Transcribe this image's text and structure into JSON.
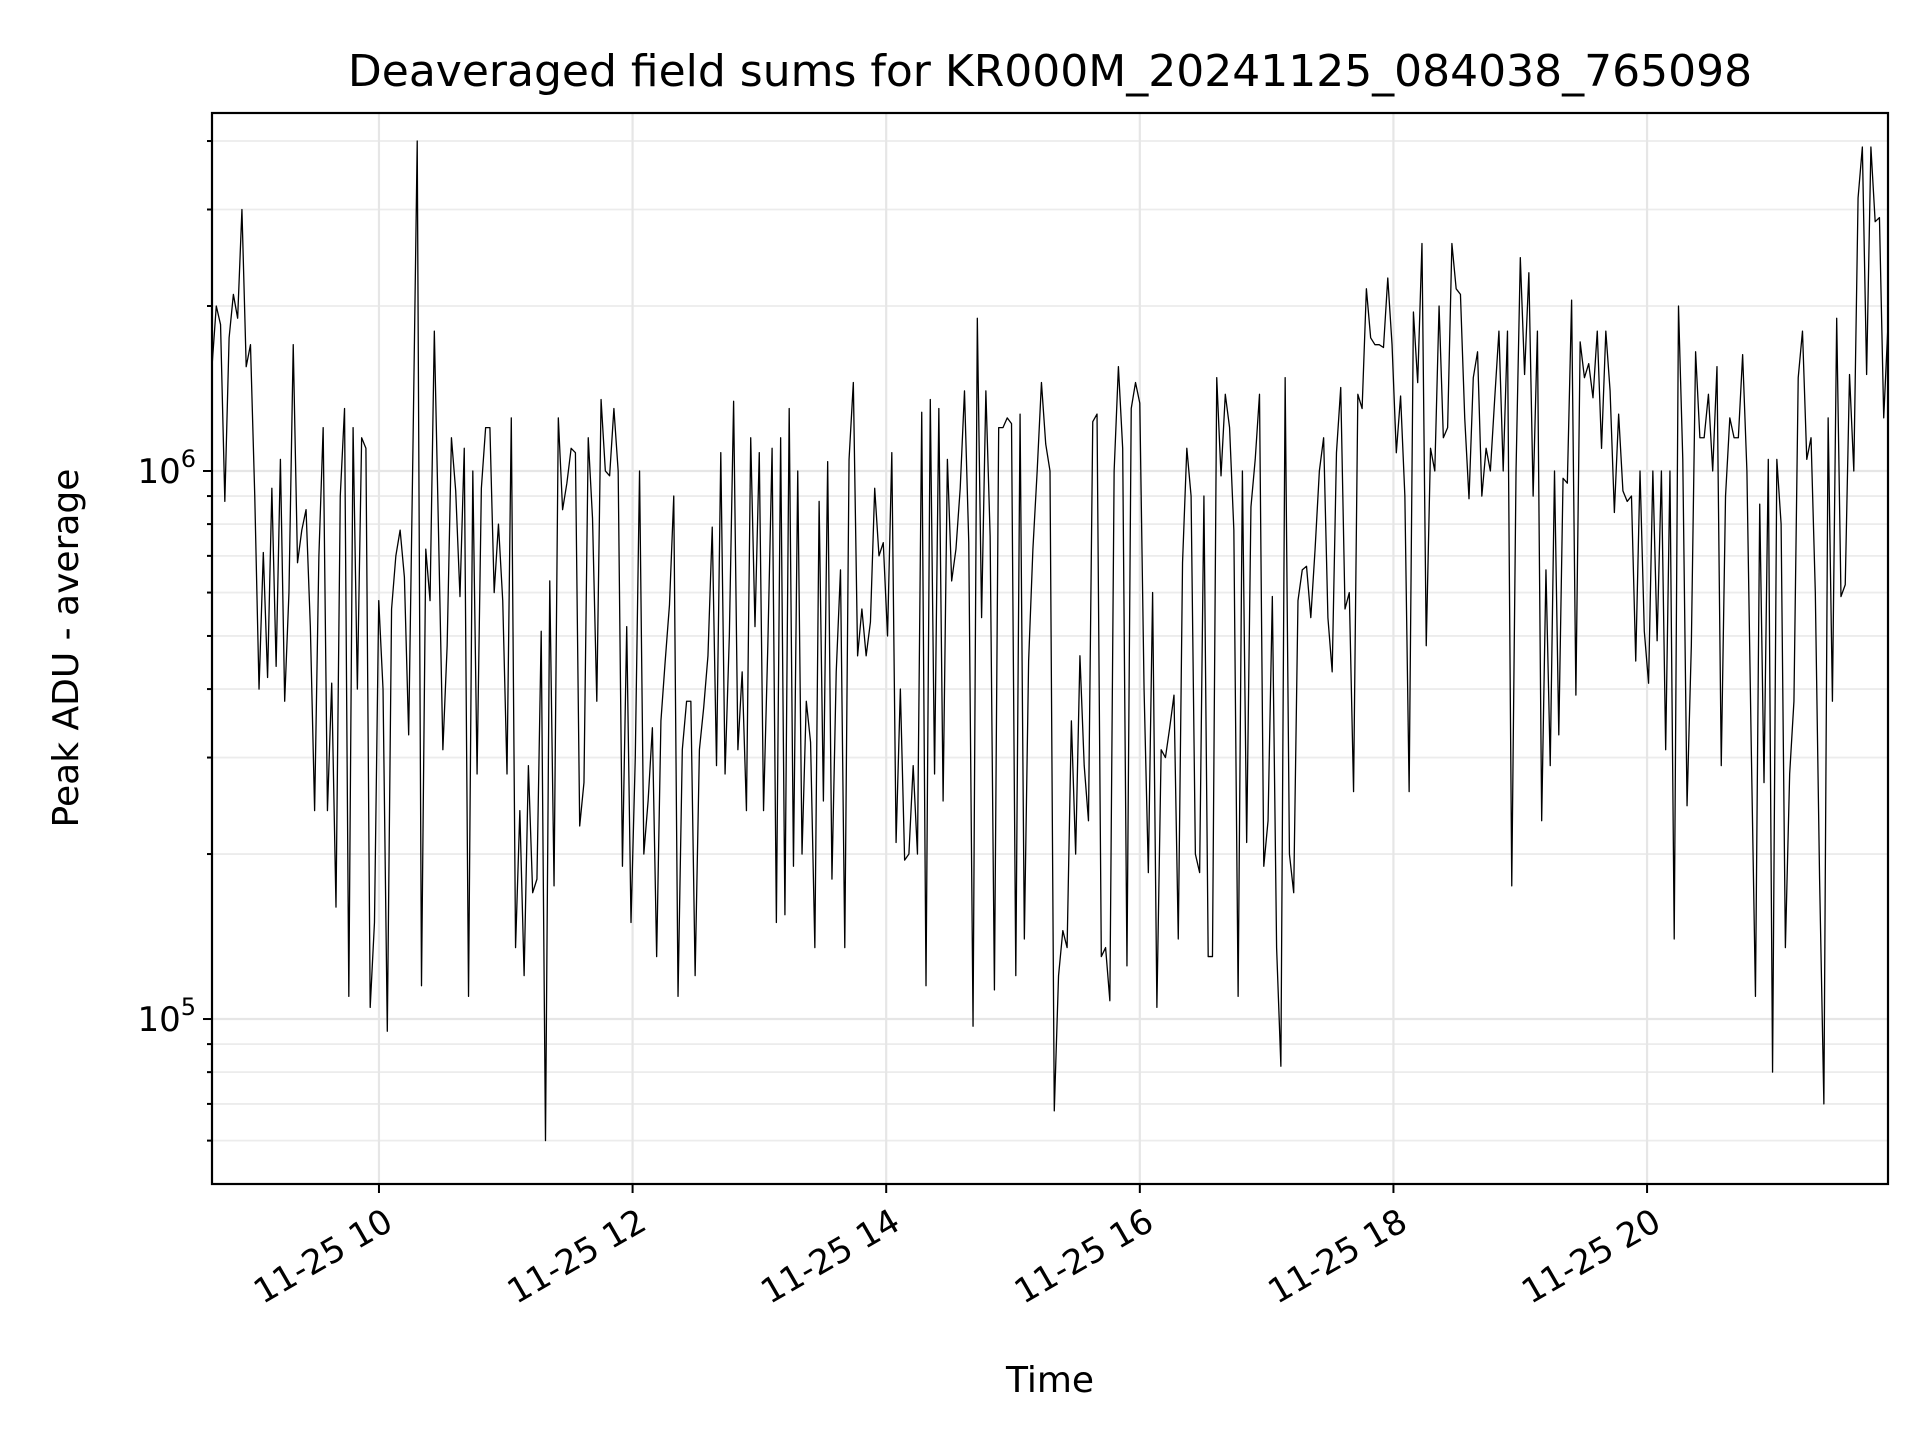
{
  "chart_data": {
    "type": "line",
    "title": "Deaveraged field sums for KR000M_20241125_084038_765098",
    "xlabel": "Time",
    "ylabel": "Peak ADU - average",
    "yscale": "log",
    "grid": true,
    "legend": "none",
    "colors": {
      "line": "#000000",
      "grid": "#e6e6e6",
      "background": "#ffffff"
    },
    "x_range": [
      "2024-11-25 08:41",
      "2024-11-25 21:54"
    ],
    "ylim": [
      50000,
      4500000
    ],
    "x_ticks": [
      {
        "value": "2024-11-25 10:00",
        "label": "11-25 10"
      },
      {
        "value": "2024-11-25 12:00",
        "label": "11-25 12"
      },
      {
        "value": "2024-11-25 14:00",
        "label": "11-25 14"
      },
      {
        "value": "2024-11-25 16:00",
        "label": "11-25 16"
      },
      {
        "value": "2024-11-25 18:00",
        "label": "11-25 18"
      },
      {
        "value": "2024-11-25 20:00",
        "label": "11-25 20"
      }
    ],
    "y_ticks": [
      {
        "value": 100000,
        "base": "10",
        "exp": "5"
      },
      {
        "value": 1000000,
        "base": "10",
        "exp": "6"
      }
    ],
    "x_start": "2024-11-25 08:41",
    "x_end": "2024-11-25 21:54",
    "values": [
      1550000,
      2000000,
      1850000,
      880000,
      1750000,
      2100000,
      1900000,
      3000000,
      1550000,
      1700000,
      900000,
      400000,
      710000,
      420000,
      930000,
      440000,
      1050000,
      380000,
      600000,
      1700000,
      680000,
      780000,
      850000,
      520000,
      240000,
      700000,
      1200000,
      240000,
      410000,
      160000,
      900000,
      1300000,
      110000,
      1200000,
      400000,
      1150000,
      1100000,
      105000,
      150000,
      580000,
      400000,
      95000,
      560000,
      700000,
      780000,
      640000,
      330000,
      1100000,
      4000000,
      115000,
      720000,
      580000,
      1800000,
      760000,
      310000,
      480000,
      1150000,
      920000,
      590000,
      1100000,
      110000,
      1000000,
      280000,
      930000,
      1200000,
      1200000,
      600000,
      800000,
      580000,
      280000,
      1250000,
      135000,
      240000,
      120000,
      290000,
      170000,
      180000,
      510000,
      60000,
      630000,
      175000,
      1250000,
      850000,
      950000,
      1100000,
      1080000,
      225000,
      270000,
      1150000,
      820000,
      380000,
      1350000,
      1000000,
      980000,
      1300000,
      1000000,
      190000,
      520000,
      150000,
      300000,
      1000000,
      200000,
      250000,
      340000,
      130000,
      350000,
      450000,
      570000,
      900000,
      110000,
      310000,
      380000,
      380000,
      120000,
      310000,
      370000,
      460000,
      790000,
      290000,
      1080000,
      280000,
      500000,
      1340000,
      310000,
      430000,
      240000,
      1150000,
      520000,
      1080000,
      240000,
      480000,
      1100000,
      150000,
      1150000,
      155000,
      1300000,
      190000,
      1000000,
      200000,
      380000,
      320000,
      135000,
      880000,
      250000,
      1040000,
      180000,
      430000,
      660000,
      135000,
      1050000,
      1450000,
      460000,
      560000,
      460000,
      530000,
      930000,
      700000,
      740000,
      500000,
      1080000,
      210000,
      400000,
      195000,
      200000,
      290000,
      200000,
      1280000,
      115000,
      1350000,
      280000,
      1300000,
      250000,
      1050000,
      630000,
      720000,
      930000,
      1400000,
      740000,
      97000,
      1900000,
      540000,
      1400000,
      760000,
      113000,
      1200000,
      1200000,
      1250000,
      1220000,
      120000,
      1270000,
      140000,
      450000,
      720000,
      1000000,
      1450000,
      1120000,
      1000000,
      68000,
      120000,
      145000,
      135000,
      350000,
      200000,
      460000,
      290000,
      230000,
      1230000,
      1270000,
      130000,
      135000,
      108000,
      1000000,
      1550000,
      1100000,
      125000,
      1300000,
      1450000,
      1330000,
      400000,
      185000,
      600000,
      105000,
      310000,
      300000,
      340000,
      390000,
      140000,
      680000,
      1100000,
      900000,
      200000,
      185000,
      900000,
      130000,
      130000,
      1480000,
      980000,
      1380000,
      1200000,
      780000,
      110000,
      1000000,
      210000,
      860000,
      1050000,
      1380000,
      190000,
      230000,
      590000,
      135000,
      82000,
      1480000,
      200000,
      170000,
      580000,
      660000,
      670000,
      540000,
      720000,
      1000000,
      1150000,
      540000,
      430000,
      1080000,
      1420000,
      560000,
      600000,
      260000,
      1380000,
      1300000,
      2150000,
      1750000,
      1700000,
      1700000,
      1680000,
      2250000,
      1700000,
      1080000,
      1370000,
      900000,
      260000,
      1950000,
      1450000,
      2600000,
      480000,
      1100000,
      1000000,
      2000000,
      1150000,
      1200000,
      2600000,
      2150000,
      2100000,
      1250000,
      890000,
      1480000,
      1650000,
      900000,
      1100000,
      1000000,
      1350000,
      1800000,
      1000000,
      1800000,
      175000,
      1000000,
      2450000,
      1500000,
      2300000,
      900000,
      1800000,
      230000,
      660000,
      290000,
      1000000,
      330000,
      970000,
      950000,
      2050000,
      390000,
      1720000,
      1480000,
      1570000,
      1360000,
      1800000,
      1100000,
      1800000,
      1400000,
      840000,
      1270000,
      920000,
      880000,
      900000,
      450000,
      1000000,
      510000,
      410000,
      1000000,
      490000,
      1000000,
      310000,
      1000000,
      140000,
      2000000,
      1050000,
      245000,
      480000,
      1650000,
      1150000,
      1150000,
      1380000,
      1000000,
      1550000,
      290000,
      900000,
      1250000,
      1150000,
      1150000,
      1630000,
      1000000,
      320000,
      110000,
      870000,
      270000,
      1050000,
      80000,
      1050000,
      800000,
      135000,
      280000,
      380000,
      1480000,
      1800000,
      1050000,
      1150000,
      600000,
      180000,
      70000,
      1250000,
      380000,
      1900000,
      590000,
      620000,
      1500000,
      1000000,
      3150000,
      3900000,
      1500000,
      3900000,
      2850000,
      2900000,
      1250000,
      1850000
    ]
  }
}
